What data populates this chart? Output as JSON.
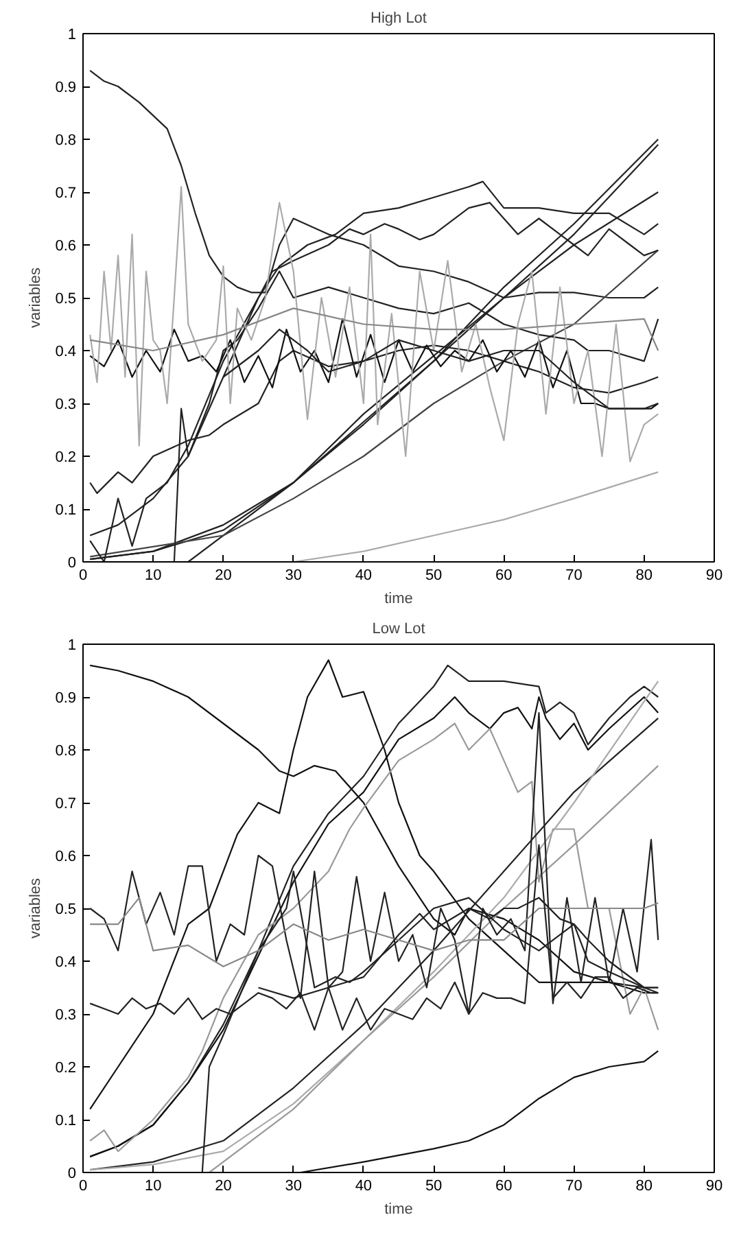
{
  "chart_data": [
    {
      "type": "line",
      "title": "High Lot",
      "xlabel": "time",
      "ylabel": "variables",
      "xlim": [
        0,
        90
      ],
      "ylim": [
        0,
        1
      ],
      "xticks": [
        0,
        10,
        20,
        30,
        40,
        50,
        60,
        70,
        80,
        90
      ],
      "yticks": [
        0,
        0.1,
        0.2,
        0.3,
        0.4,
        0.5,
        0.6,
        0.7,
        0.8,
        0.9,
        1
      ],
      "grid": false,
      "series": [
        {
          "color": "#222222",
          "x": [
            1,
            3,
            5,
            8,
            12,
            14,
            16,
            18,
            20,
            22,
            24,
            26,
            28,
            30,
            35,
            40,
            45,
            50,
            55,
            60,
            65,
            70,
            75,
            80,
            82
          ],
          "values": [
            0.93,
            0.91,
            0.9,
            0.87,
            0.82,
            0.75,
            0.66,
            0.58,
            0.54,
            0.52,
            0.51,
            0.51,
            0.6,
            0.65,
            0.62,
            0.6,
            0.56,
            0.55,
            0.53,
            0.5,
            0.51,
            0.51,
            0.5,
            0.5,
            0.52
          ]
        },
        {
          "color": "#222222",
          "x": [
            1,
            10,
            20,
            30,
            40,
            50,
            60,
            70,
            82
          ],
          "values": [
            0.005,
            0.02,
            0.06,
            0.15,
            0.26,
            0.38,
            0.52,
            0.64,
            0.8
          ]
        },
        {
          "color": "#222222",
          "x": [
            15,
            30,
            50,
            70,
            82
          ],
          "values": [
            0,
            0.15,
            0.38,
            0.62,
            0.79
          ]
        },
        {
          "color": "#222222",
          "x": [
            1,
            10,
            20,
            30,
            40,
            50,
            60,
            70,
            82
          ],
          "values": [
            0.005,
            0.02,
            0.07,
            0.15,
            0.28,
            0.39,
            0.5,
            0.6,
            0.7
          ]
        },
        {
          "color": "#444444",
          "x": [
            1,
            20,
            30,
            40,
            50,
            60,
            70,
            82
          ],
          "values": [
            0.01,
            0.05,
            0.12,
            0.2,
            0.3,
            0.38,
            0.45,
            0.59
          ]
        },
        {
          "color": "#aaaaaa",
          "x": [
            30,
            40,
            50,
            60,
            70,
            82
          ],
          "values": [
            0,
            0.02,
            0.05,
            0.08,
            0.12,
            0.17
          ]
        },
        {
          "color": "#222222",
          "x": [
            1,
            5,
            10,
            15,
            20,
            25,
            28,
            32,
            36,
            40,
            45,
            50,
            55,
            57,
            60,
            65,
            70,
            75,
            80,
            82
          ],
          "values": [
            0.05,
            0.07,
            0.12,
            0.2,
            0.35,
            0.5,
            0.56,
            0.6,
            0.62,
            0.66,
            0.67,
            0.69,
            0.71,
            0.72,
            0.67,
            0.67,
            0.66,
            0.66,
            0.62,
            0.64
          ]
        },
        {
          "color": "#222222",
          "x": [
            1,
            3,
            5,
            7,
            9,
            12,
            15,
            20,
            25,
            27,
            30,
            35,
            38,
            40,
            43,
            45,
            48,
            50,
            55,
            58,
            60,
            62,
            65,
            68,
            70,
            72,
            75,
            78,
            80,
            82
          ],
          "values": [
            0.04,
            0.0,
            0.12,
            0.03,
            0.12,
            0.15,
            0.22,
            0.38,
            0.5,
            0.55,
            0.57,
            0.6,
            0.63,
            0.62,
            0.64,
            0.63,
            0.61,
            0.62,
            0.67,
            0.68,
            0.65,
            0.62,
            0.65,
            0.62,
            0.6,
            0.58,
            0.63,
            0.6,
            0.58,
            0.59
          ]
        },
        {
          "color": "#222222",
          "x": [
            13,
            14,
            15,
            18,
            20,
            22,
            25,
            28,
            30,
            35,
            40,
            45,
            50,
            55,
            60,
            65,
            70,
            72,
            75,
            80,
            82
          ],
          "values": [
            0,
            0.29,
            0.2,
            0.3,
            0.4,
            0.42,
            0.48,
            0.55,
            0.5,
            0.52,
            0.5,
            0.48,
            0.47,
            0.49,
            0.45,
            0.43,
            0.42,
            0.4,
            0.4,
            0.38,
            0.46
          ]
        },
        {
          "color": "#222222",
          "x": [
            1,
            2,
            5,
            7,
            10,
            15,
            18,
            20,
            25,
            28,
            30,
            35,
            40,
            45,
            50,
            55,
            60,
            65,
            70,
            75,
            80,
            82
          ],
          "values": [
            0.15,
            0.13,
            0.17,
            0.15,
            0.2,
            0.23,
            0.24,
            0.26,
            0.3,
            0.38,
            0.4,
            0.37,
            0.38,
            0.4,
            0.41,
            0.4,
            0.38,
            0.36,
            0.33,
            0.32,
            0.34,
            0.35
          ]
        },
        {
          "color": "#111111",
          "x": [
            1,
            3,
            5,
            7,
            9,
            11,
            13,
            15,
            17,
            19,
            21,
            23,
            25,
            27,
            29,
            31,
            33,
            35,
            37,
            39,
            41,
            43,
            45,
            47,
            49,
            51,
            53,
            55,
            57,
            59,
            61,
            63,
            65,
            67,
            69,
            71,
            73,
            75,
            77,
            79,
            81,
            82
          ],
          "values": [
            0.39,
            0.37,
            0.42,
            0.35,
            0.4,
            0.36,
            0.44,
            0.38,
            0.39,
            0.36,
            0.42,
            0.34,
            0.39,
            0.33,
            0.44,
            0.36,
            0.4,
            0.34,
            0.46,
            0.35,
            0.43,
            0.34,
            0.42,
            0.36,
            0.41,
            0.37,
            0.4,
            0.38,
            0.42,
            0.36,
            0.4,
            0.35,
            0.42,
            0.33,
            0.4,
            0.3,
            0.3,
            0.29,
            0.29,
            0.29,
            0.29,
            0.3
          ]
        },
        {
          "color": "#aaaaaa",
          "x": [
            1,
            2,
            3,
            4,
            5,
            6,
            7,
            8,
            9,
            10,
            11,
            12,
            13,
            14,
            15,
            17,
            19,
            20,
            21,
            22,
            24,
            26,
            28,
            30,
            32,
            34,
            36,
            38,
            40,
            41,
            42,
            44,
            46,
            48,
            50,
            52,
            54,
            56,
            58,
            60,
            62,
            64,
            66,
            68,
            70,
            72,
            74,
            76,
            78,
            80,
            82
          ],
          "values": [
            0.43,
            0.34,
            0.55,
            0.4,
            0.58,
            0.35,
            0.62,
            0.22,
            0.55,
            0.42,
            0.4,
            0.3,
            0.5,
            0.71,
            0.45,
            0.38,
            0.42,
            0.56,
            0.3,
            0.48,
            0.42,
            0.5,
            0.68,
            0.55,
            0.27,
            0.5,
            0.35,
            0.52,
            0.3,
            0.62,
            0.26,
            0.47,
            0.2,
            0.55,
            0.4,
            0.57,
            0.36,
            0.45,
            0.33,
            0.23,
            0.45,
            0.55,
            0.28,
            0.52,
            0.3,
            0.4,
            0.2,
            0.45,
            0.19,
            0.26,
            0.28
          ]
        },
        {
          "color": "#888888",
          "x": [
            1,
            10,
            20,
            30,
            40,
            50,
            60,
            70,
            80,
            82
          ],
          "values": [
            0.42,
            0.4,
            0.43,
            0.48,
            0.45,
            0.44,
            0.44,
            0.45,
            0.46,
            0.4
          ]
        },
        {
          "color": "#222222",
          "x": [
            20,
            25,
            28,
            32,
            35,
            40,
            45,
            50,
            55,
            60,
            65,
            70,
            75,
            80,
            82
          ],
          "values": [
            0.35,
            0.4,
            0.44,
            0.4,
            0.36,
            0.38,
            0.42,
            0.4,
            0.38,
            0.4,
            0.4,
            0.34,
            0.29,
            0.29,
            0.3
          ]
        }
      ]
    },
    {
      "type": "line",
      "title": "Low Lot",
      "xlabel": "time",
      "ylabel": "variables",
      "xlim": [
        0,
        90
      ],
      "ylim": [
        0,
        1
      ],
      "xticks": [
        0,
        10,
        20,
        30,
        40,
        50,
        60,
        70,
        80,
        90
      ],
      "yticks": [
        0,
        0.1,
        0.2,
        0.3,
        0.4,
        0.5,
        0.6,
        0.7,
        0.8,
        0.9,
        1
      ],
      "grid": false,
      "series": [
        {
          "color": "#111111",
          "x": [
            1,
            5,
            10,
            15,
            20,
            25,
            28,
            30,
            33,
            36,
            40,
            45,
            50,
            53,
            55,
            60,
            65,
            70,
            75,
            80,
            82
          ],
          "values": [
            0.96,
            0.95,
            0.93,
            0.9,
            0.85,
            0.8,
            0.76,
            0.75,
            0.77,
            0.76,
            0.7,
            0.58,
            0.48,
            0.45,
            0.5,
            0.48,
            0.44,
            0.38,
            0.36,
            0.35,
            0.35
          ]
        },
        {
          "color": "#111111",
          "x": [
            1,
            5,
            10,
            15,
            18,
            20,
            22,
            25,
            28,
            30,
            32,
            35,
            37,
            40,
            43,
            45,
            48,
            50,
            55,
            60,
            65,
            70,
            75,
            80,
            82
          ],
          "values": [
            0.12,
            0.2,
            0.3,
            0.47,
            0.5,
            0.57,
            0.64,
            0.7,
            0.68,
            0.8,
            0.9,
            0.97,
            0.9,
            0.91,
            0.8,
            0.7,
            0.6,
            0.57,
            0.48,
            0.42,
            0.36,
            0.36,
            0.36,
            0.34,
            0.34
          ]
        },
        {
          "color": "#222222",
          "x": [
            1,
            5,
            10,
            15,
            20,
            25,
            30,
            35,
            40,
            45,
            50,
            52,
            55,
            60,
            65,
            66,
            68,
            70,
            72,
            75,
            78,
            80,
            82
          ],
          "values": [
            0.03,
            0.05,
            0.09,
            0.17,
            0.28,
            0.42,
            0.58,
            0.68,
            0.75,
            0.85,
            0.92,
            0.96,
            0.93,
            0.93,
            0.92,
            0.87,
            0.89,
            0.87,
            0.81,
            0.86,
            0.9,
            0.92,
            0.9
          ]
        },
        {
          "color": "#111111",
          "x": [
            1,
            5,
            10,
            15,
            20,
            25,
            30,
            35,
            40,
            45,
            50,
            53,
            55,
            58,
            60,
            62,
            64,
            65,
            66,
            68,
            70,
            72,
            75,
            80,
            82
          ],
          "values": [
            0.03,
            0.05,
            0.09,
            0.17,
            0.27,
            0.41,
            0.55,
            0.66,
            0.72,
            0.82,
            0.86,
            0.9,
            0.87,
            0.84,
            0.87,
            0.88,
            0.84,
            0.9,
            0.86,
            0.82,
            0.85,
            0.8,
            0.84,
            0.9,
            0.87
          ]
        },
        {
          "color": "#999999",
          "x": [
            1,
            3,
            5,
            10,
            15,
            17,
            20,
            25,
            30,
            35,
            38,
            40,
            45,
            50,
            53,
            55,
            58,
            60,
            62,
            64,
            65,
            67,
            70,
            72,
            75,
            78,
            80,
            82
          ],
          "values": [
            0.06,
            0.08,
            0.04,
            0.1,
            0.18,
            0.23,
            0.33,
            0.45,
            0.5,
            0.57,
            0.65,
            0.69,
            0.78,
            0.82,
            0.85,
            0.8,
            0.84,
            0.78,
            0.72,
            0.74,
            0.55,
            0.65,
            0.65,
            0.5,
            0.5,
            0.3,
            0.35,
            0.27
          ]
        },
        {
          "color": "#222222",
          "x": [
            1,
            10,
            20,
            30,
            40,
            50,
            60,
            70,
            82
          ],
          "values": [
            0.005,
            0.02,
            0.06,
            0.16,
            0.28,
            0.42,
            0.57,
            0.72,
            0.86
          ]
        },
        {
          "color": "#aaaaaa",
          "x": [
            1,
            10,
            20,
            30,
            40,
            50,
            60,
            70,
            82
          ],
          "values": [
            0.005,
            0.015,
            0.04,
            0.13,
            0.25,
            0.38,
            0.52,
            0.7,
            0.93
          ]
        },
        {
          "color": "#999999",
          "x": [
            18,
            30,
            40,
            50,
            60,
            70,
            82
          ],
          "values": [
            0,
            0.12,
            0.25,
            0.37,
            0.5,
            0.62,
            0.77
          ]
        },
        {
          "color": "#111111",
          "x": [
            31,
            40,
            50,
            55,
            60,
            65,
            70,
            75,
            80,
            82
          ],
          "values": [
            0,
            0.02,
            0.045,
            0.06,
            0.09,
            0.14,
            0.18,
            0.2,
            0.21,
            0.23
          ]
        },
        {
          "color": "#222222",
          "x": [
            17,
            18,
            20,
            25,
            28,
            29,
            30,
            33,
            36,
            38,
            40,
            45,
            50,
            55,
            60,
            65,
            70,
            72,
            75,
            80,
            82
          ],
          "values": [
            0,
            0.2,
            0.26,
            0.42,
            0.48,
            0.5,
            0.57,
            0.35,
            0.37,
            0.36,
            0.38,
            0.44,
            0.5,
            0.52,
            0.46,
            0.42,
            0.47,
            0.4,
            0.38,
            0.35,
            0.35
          ]
        },
        {
          "color": "#222222",
          "x": [
            1,
            3,
            5,
            7,
            9,
            11,
            13,
            15,
            17,
            19,
            21,
            23,
            25,
            27,
            29,
            31,
            33,
            35,
            37,
            39,
            41,
            43,
            45,
            47,
            49,
            51,
            53,
            55,
            57,
            59,
            61,
            63,
            65,
            67,
            69,
            71,
            73,
            75,
            77,
            79,
            81,
            82
          ],
          "values": [
            0.5,
            0.48,
            0.42,
            0.57,
            0.47,
            0.53,
            0.45,
            0.58,
            0.58,
            0.4,
            0.47,
            0.45,
            0.6,
            0.58,
            0.44,
            0.33,
            0.57,
            0.35,
            0.38,
            0.56,
            0.4,
            0.53,
            0.4,
            0.45,
            0.35,
            0.5,
            0.44,
            0.3,
            0.5,
            0.45,
            0.48,
            0.42,
            0.87,
            0.32,
            0.52,
            0.36,
            0.52,
            0.36,
            0.5,
            0.38,
            0.63,
            0.44
          ]
        },
        {
          "color": "#888888",
          "x": [
            1,
            5,
            8,
            10,
            15,
            20,
            25,
            30,
            35,
            40,
            45,
            50,
            55,
            60,
            65,
            70,
            75,
            80,
            82
          ],
          "values": [
            0.47,
            0.47,
            0.52,
            0.42,
            0.43,
            0.39,
            0.42,
            0.47,
            0.44,
            0.46,
            0.44,
            0.42,
            0.44,
            0.44,
            0.5,
            0.5,
            0.5,
            0.5,
            0.51
          ]
        },
        {
          "color": "#222222",
          "x": [
            1,
            3,
            5,
            7,
            9,
            11,
            13,
            15,
            17,
            19,
            21,
            23,
            25,
            27,
            29,
            31,
            33,
            35,
            37,
            39,
            41,
            43,
            45,
            47,
            49,
            51,
            53,
            55,
            57,
            59,
            61,
            63,
            65,
            67,
            69,
            71,
            73,
            75,
            77,
            79,
            81,
            82
          ],
          "values": [
            0.32,
            0.31,
            0.3,
            0.33,
            0.31,
            0.32,
            0.3,
            0.33,
            0.29,
            0.31,
            0.3,
            0.32,
            0.34,
            0.33,
            0.31,
            0.34,
            0.27,
            0.35,
            0.27,
            0.33,
            0.27,
            0.31,
            0.3,
            0.29,
            0.33,
            0.31,
            0.36,
            0.3,
            0.34,
            0.33,
            0.33,
            0.32,
            0.62,
            0.33,
            0.36,
            0.33,
            0.37,
            0.37,
            0.33,
            0.35,
            0.34,
            0.34
          ]
        },
        {
          "color": "#222222",
          "x": [
            25,
            30,
            35,
            40,
            45,
            48,
            50,
            55,
            58,
            60,
            62,
            65,
            68,
            70,
            72,
            75,
            80,
            82
          ],
          "values": [
            0.35,
            0.33,
            0.35,
            0.37,
            0.45,
            0.49,
            0.46,
            0.5,
            0.48,
            0.5,
            0.5,
            0.52,
            0.48,
            0.47,
            0.44,
            0.4,
            0.35,
            0.34
          ]
        }
      ]
    }
  ]
}
